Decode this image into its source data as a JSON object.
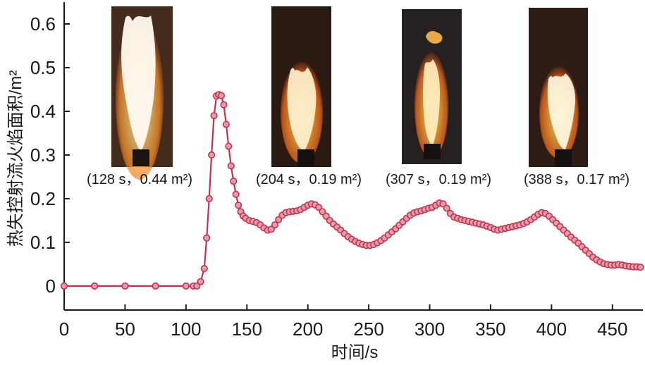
{
  "chart_data": {
    "type": "line",
    "xlabel": "时间/s",
    "ylabel": "热失控射流火焰面积/m²",
    "xlim": [
      0,
      475
    ],
    "ylim": [
      -0.055,
      0.65
    ],
    "xticks": [
      0,
      50,
      100,
      150,
      200,
      250,
      300,
      350,
      400,
      450
    ],
    "yticks": [
      0,
      0.1,
      0.2,
      0.3,
      0.4,
      0.5,
      0.6
    ],
    "ytick_labels": [
      "0",
      "0.1",
      "0.2",
      "0.3",
      "0.4",
      "0.5",
      "0.6"
    ],
    "grid": false,
    "legend": "none",
    "series_color": "#c0344f",
    "marker_fill": "#e89aa9",
    "series": [
      {
        "x": [
          0,
          25,
          50,
          75,
          100,
          106,
          109,
          112,
          115,
          117,
          119,
          121,
          123,
          125,
          127,
          129,
          131,
          133,
          135,
          137,
          139,
          141,
          143,
          145,
          147,
          149,
          152,
          155,
          158,
          161,
          164,
          167,
          170,
          173,
          176,
          179,
          182,
          185,
          188,
          191,
          194,
          197,
          200,
          203,
          206,
          209,
          212,
          215,
          218,
          221,
          224,
          227,
          230,
          233,
          236,
          239,
          242,
          245,
          248,
          251,
          254,
          257,
          260,
          263,
          266,
          269,
          272,
          275,
          278,
          281,
          284,
          287,
          290,
          293,
          296,
          299,
          302,
          305,
          308,
          311,
          314,
          317,
          320,
          323,
          326,
          329,
          332,
          335,
          338,
          341,
          344,
          347,
          350,
          353,
          356,
          359,
          362,
          365,
          368,
          371,
          374,
          377,
          380,
          383,
          386,
          389,
          392,
          395,
          398,
          401,
          404,
          407,
          410,
          413,
          416,
          419,
          422,
          425,
          428,
          431,
          434,
          437,
          440,
          443,
          446,
          449,
          452,
          455,
          458,
          461,
          464,
          467,
          470,
          473
        ],
        "y": [
          0,
          0,
          0,
          0,
          0,
          0,
          0,
          0.01,
          0.04,
          0.11,
          0.2,
          0.3,
          0.39,
          0.435,
          0.438,
          0.436,
          0.415,
          0.37,
          0.32,
          0.275,
          0.24,
          0.21,
          0.185,
          0.17,
          0.16,
          0.155,
          0.15,
          0.148,
          0.145,
          0.14,
          0.133,
          0.128,
          0.13,
          0.14,
          0.152,
          0.162,
          0.168,
          0.17,
          0.171,
          0.172,
          0.175,
          0.18,
          0.185,
          0.188,
          0.186,
          0.18,
          0.17,
          0.16,
          0.15,
          0.142,
          0.135,
          0.128,
          0.12,
          0.113,
          0.107,
          0.102,
          0.098,
          0.095,
          0.093,
          0.093,
          0.095,
          0.099,
          0.104,
          0.11,
          0.117,
          0.124,
          0.131,
          0.139,
          0.147,
          0.155,
          0.162,
          0.167,
          0.17,
          0.172,
          0.175,
          0.178,
          0.18,
          0.185,
          0.19,
          0.188,
          0.178,
          0.166,
          0.158,
          0.155,
          0.152,
          0.15,
          0.148,
          0.146,
          0.144,
          0.142,
          0.14,
          0.137,
          0.134,
          0.13,
          0.128,
          0.13,
          0.132,
          0.134,
          0.136,
          0.138,
          0.14,
          0.143,
          0.147,
          0.152,
          0.158,
          0.164,
          0.168,
          0.166,
          0.16,
          0.152,
          0.144,
          0.136,
          0.128,
          0.12,
          0.112,
          0.105,
          0.098,
          0.09,
          0.082,
          0.074,
          0.066,
          0.06,
          0.055,
          0.051,
          0.049,
          0.048,
          0.048,
          0.049,
          0.048,
          0.046,
          0.045,
          0.044,
          0.044,
          0.043
        ]
      }
    ],
    "annotations": [
      {
        "text": "(128 s，0.44 m²)",
        "x": 128,
        "y": 0.44
      },
      {
        "text": "(204 s，0.19 m²)",
        "x": 204,
        "y": 0.19
      },
      {
        "text": "(307 s，0.19 m²)",
        "x": 307,
        "y": 0.19
      },
      {
        "text": "(388 s，0.17 m²)",
        "x": 388,
        "y": 0.17
      }
    ]
  },
  "colors": {
    "axis": "#1a1a1a",
    "flame_background": "#2a1a10",
    "flame_core": "#fff6dc",
    "flame_mid": "#ffc24a",
    "flame_outer": "#e0641c"
  }
}
